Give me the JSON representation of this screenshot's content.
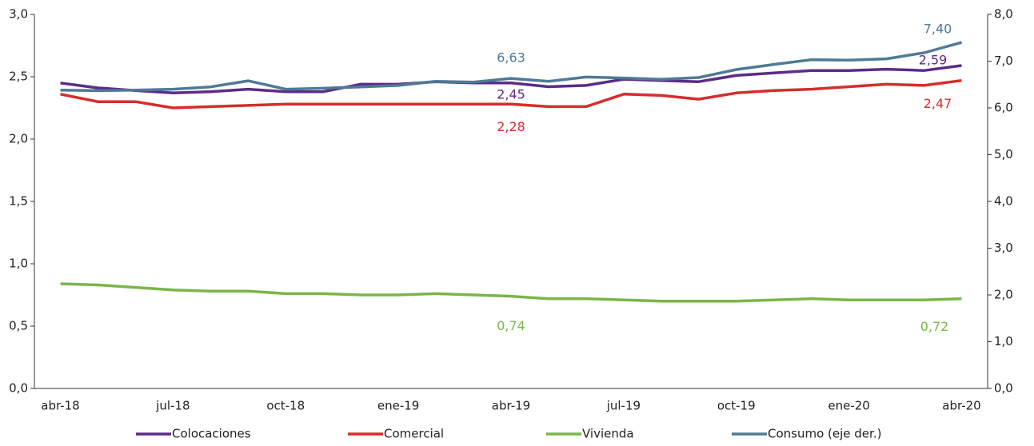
{
  "chart_data": {
    "type": "line",
    "categories": [
      "abr-18",
      null,
      null,
      "jul-18",
      null,
      null,
      "oct-18",
      null,
      null,
      "ene-19",
      null,
      null,
      "abr-19",
      null,
      null,
      "jul-19",
      null,
      null,
      "oct-19",
      null,
      null,
      "ene-20",
      null,
      null,
      "abr-20"
    ],
    "series": [
      {
        "name": "Colocaciones",
        "color": "#5b2c8a",
        "values": [
          2.45,
          2.41,
          2.39,
          2.37,
          2.38,
          2.4,
          2.38,
          2.38,
          2.44,
          2.44,
          2.46,
          2.45,
          2.45,
          2.42,
          2.43,
          2.48,
          2.47,
          2.46,
          2.51,
          2.53,
          2.55,
          2.55,
          2.56,
          2.55,
          2.59
        ],
        "value_labels": [
          null,
          null,
          null,
          null,
          null,
          null,
          null,
          null,
          null,
          null,
          null,
          null,
          "2,45",
          null,
          null,
          null,
          null,
          null,
          null,
          null,
          null,
          null,
          null,
          null,
          "2,59"
        ]
      },
      {
        "name": "Comercial",
        "color": "#d62d2d",
        "values": [
          2.36,
          2.3,
          2.3,
          2.25,
          2.26,
          2.27,
          2.28,
          2.28,
          2.28,
          2.28,
          2.28,
          2.28,
          2.28,
          2.26,
          2.26,
          2.36,
          2.35,
          2.32,
          2.37,
          2.39,
          2.4,
          2.42,
          2.44,
          2.43,
          2.47
        ],
        "value_labels": [
          null,
          null,
          null,
          null,
          null,
          null,
          null,
          null,
          null,
          null,
          null,
          null,
          "2,28",
          null,
          null,
          null,
          null,
          null,
          null,
          null,
          null,
          null,
          null,
          null,
          "2,47"
        ]
      },
      {
        "name": "Vivienda",
        "color": "#7ab648",
        "values": [
          0.84,
          0.83,
          0.81,
          0.79,
          0.78,
          0.78,
          0.76,
          0.76,
          0.75,
          0.75,
          0.76,
          0.75,
          0.74,
          0.72,
          0.72,
          0.71,
          0.7,
          0.7,
          0.7,
          0.71,
          0.72,
          0.71,
          0.71,
          0.71,
          0.72
        ],
        "value_labels": [
          null,
          null,
          null,
          null,
          null,
          null,
          null,
          null,
          null,
          null,
          null,
          null,
          "0,74",
          null,
          null,
          null,
          null,
          null,
          null,
          null,
          null,
          null,
          null,
          null,
          "0,72"
        ]
      },
      {
        "name": "Consumo (eje der.)",
        "color": "#4f7a94",
        "axis": "y2",
        "values": [
          6.38,
          6.37,
          6.38,
          6.4,
          6.45,
          6.58,
          6.4,
          6.42,
          6.45,
          6.48,
          6.57,
          6.55,
          6.63,
          6.57,
          6.66,
          6.64,
          6.61,
          6.65,
          6.82,
          6.93,
          7.03,
          7.02,
          7.05,
          7.18,
          7.4
        ],
        "value_labels": [
          null,
          null,
          null,
          null,
          null,
          null,
          null,
          null,
          null,
          null,
          null,
          null,
          "6,63",
          null,
          null,
          null,
          null,
          null,
          null,
          null,
          null,
          null,
          null,
          null,
          "7,40"
        ]
      }
    ],
    "ylim": [
      0,
      3.0
    ],
    "yticks": [
      {
        "value": 0,
        "label": "0,0"
      },
      {
        "value": 0.5,
        "label": "0,5"
      },
      {
        "value": 1.0,
        "label": "1,0"
      },
      {
        "value": 1.5,
        "label": "1,5"
      },
      {
        "value": 2.0,
        "label": "2,0"
      },
      {
        "value": 2.5,
        "label": "2,5"
      },
      {
        "value": 3.0,
        "label": "3,0"
      }
    ],
    "y2lim": [
      0,
      8.0
    ],
    "y2ticks": [
      {
        "value": 0,
        "label": "0,0"
      },
      {
        "value": 1.0,
        "label": "1,0"
      },
      {
        "value": 2.0,
        "label": "2,0"
      },
      {
        "value": 3.0,
        "label": "3,0"
      },
      {
        "value": 4.0,
        "label": "4,0"
      },
      {
        "value": 5.0,
        "label": "5,0"
      },
      {
        "value": 6.0,
        "label": "6,0"
      },
      {
        "value": 7.0,
        "label": "7,0"
      },
      {
        "value": 8.0,
        "label": "8,0"
      }
    ],
    "grid": false,
    "legend": "bottom"
  }
}
